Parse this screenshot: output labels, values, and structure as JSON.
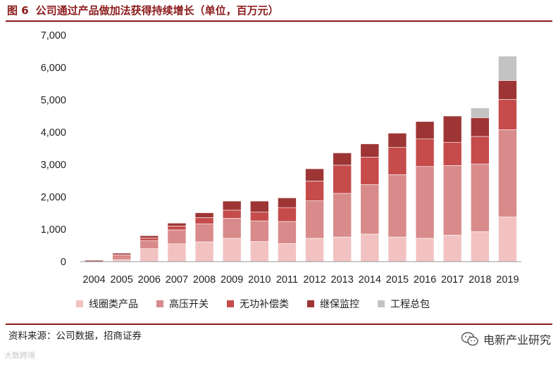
{
  "figure": {
    "number": "图 6",
    "title": "公司通过产品做加法获得持续增长（单位，百万元）"
  },
  "source": "资料来源：公司数据，招商证券",
  "watermark_left": "大数跨境",
  "watermark_right": "电新产业研究",
  "chart_data": {
    "type": "bar",
    "stacked": true,
    "categories": [
      "2004",
      "2005",
      "2006",
      "2007",
      "2008",
      "2009",
      "2010",
      "2011",
      "2012",
      "2013",
      "2014",
      "2015",
      "2016",
      "2017",
      "2018",
      "2019"
    ],
    "series": [
      {
        "name": "线圈类产品",
        "color": "#F2C2C2",
        "values": [
          0,
          60,
          400,
          550,
          610,
          720,
          620,
          560,
          720,
          760,
          850,
          760,
          720,
          820,
          930,
          1380
        ]
      },
      {
        "name": "高压开关",
        "color": "#D98A8A",
        "values": [
          0,
          150,
          250,
          430,
          560,
          620,
          640,
          680,
          1160,
          1350,
          1530,
          1930,
          2220,
          2150,
          2090,
          2700
        ]
      },
      {
        "name": "无功补偿类",
        "color": "#C64B4B",
        "values": [
          0,
          0,
          80,
          120,
          190,
          250,
          270,
          430,
          610,
          870,
          850,
          840,
          850,
          720,
          850,
          930
        ]
      },
      {
        "name": "继保监控",
        "color": "#9E3535",
        "values": [
          40,
          50,
          70,
          90,
          150,
          280,
          340,
          300,
          380,
          380,
          410,
          440,
          540,
          810,
          580,
          590
        ]
      },
      {
        "name": "工程总包",
        "color": "#C3C3C3",
        "values": [
          0,
          0,
          0,
          0,
          0,
          0,
          0,
          0,
          0,
          0,
          0,
          0,
          0,
          0,
          300,
          750
        ]
      }
    ],
    "y_ticks": [
      "0",
      "1,000",
      "2,000",
      "3,000",
      "4,000",
      "5,000",
      "6,000",
      "7,000"
    ],
    "ylim": [
      0,
      7000
    ],
    "grid": false,
    "legend_position": "bottom"
  }
}
